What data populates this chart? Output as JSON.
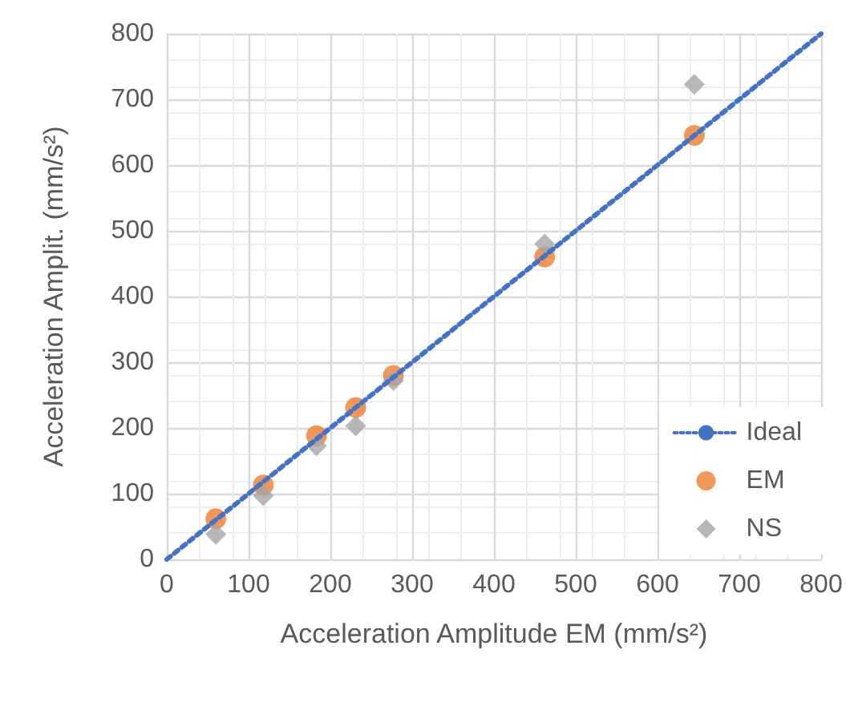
{
  "chart_data": {
    "type": "scatter",
    "xlabel": "Acceleration Amplitude EM (mm/s²)",
    "ylabel": "Acceleration Amplit. (mm/s²)",
    "xlim": [
      0,
      800
    ],
    "xticks": [
      0,
      100,
      200,
      300,
      400,
      500,
      600,
      700,
      800
    ],
    "ylim": [
      0,
      800
    ],
    "yticks": [
      0,
      100,
      200,
      300,
      400,
      500,
      600,
      700,
      800
    ],
    "grid": true,
    "legend": "bottom right",
    "series": [
      {
        "name": "Ideal",
        "type": "line",
        "color": "#4472c4",
        "marker": "none",
        "line_style": "dotted",
        "x": [
          0,
          800
        ],
        "values": [
          0,
          800
        ]
      },
      {
        "name": "EM",
        "color": "#ed7d31",
        "marker": "circle",
        "x": [
          60,
          118,
          183,
          231,
          277,
          462,
          645
        ],
        "values": [
          62,
          113,
          188,
          231,
          280,
          460,
          645
        ]
      },
      {
        "name": "NS",
        "color": "#a5a5a5",
        "marker": "diamond",
        "x": [
          60,
          118,
          183,
          231,
          277,
          462,
          645
        ],
        "values": [
          38,
          97,
          173,
          203,
          272,
          480,
          723
        ]
      }
    ]
  }
}
